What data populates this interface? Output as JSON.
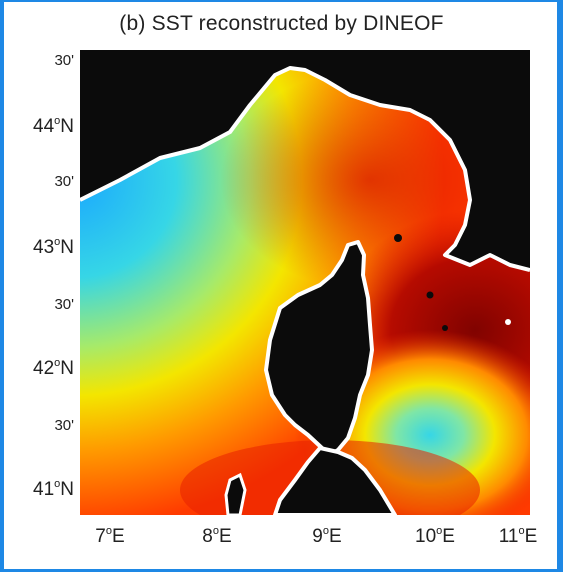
{
  "title": "(b) SST reconstructed by DINEOF",
  "y_ticks": [
    {
      "label": "30'",
      "minor": true
    },
    {
      "label": "44",
      "suffix": "N",
      "minor": false
    },
    {
      "label": "30'",
      "minor": true
    },
    {
      "label": "43",
      "suffix": "N",
      "minor": false
    },
    {
      "label": "30'",
      "minor": true
    },
    {
      "label": "42",
      "suffix": "N",
      "minor": false
    },
    {
      "label": "30'",
      "minor": true
    },
    {
      "label": "41",
      "suffix": "N",
      "minor": false
    }
  ],
  "x_ticks": [
    {
      "label": "7",
      "suffix": "E"
    },
    {
      "label": "8",
      "suffix": "E"
    },
    {
      "label": "9",
      "suffix": "E"
    },
    {
      "label": "10",
      "suffix": "E"
    },
    {
      "label": "11",
      "suffix": "E"
    }
  ],
  "colors": {
    "land": "#0b0b0b",
    "coast": "#ffffff",
    "cold": "#1aa7ff",
    "cool": "#36d6e6",
    "mid": "#f3e600",
    "warm": "#ff7a00",
    "hot": "#d81500",
    "hottest": "#8a0000",
    "frame": "#1e88e5"
  }
}
